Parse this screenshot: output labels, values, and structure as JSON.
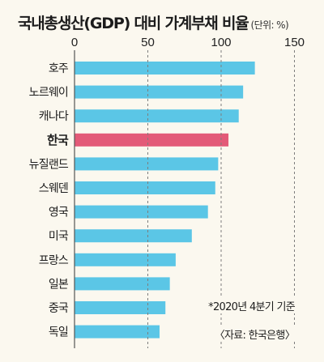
{
  "title": "국내총생산(GDP) 대비 가계부채 비율",
  "unit": "(단위: %)",
  "note": "*2020년 4분기 기준",
  "source": "〈자료: 한국은행〉",
  "colors": {
    "bar": "#5bc6e6",
    "highlight": "#e35a78",
    "grid": "#7d7d7d",
    "background": "#fbf8ef"
  },
  "chart_data": {
    "type": "bar",
    "orientation": "horizontal",
    "categories": [
      "호주",
      "노르웨이",
      "캐나다",
      "한국",
      "뉴질랜드",
      "스웨덴",
      "영국",
      "미국",
      "프랑스",
      "일본",
      "중국",
      "독일"
    ],
    "values": [
      123,
      115,
      112,
      105,
      98,
      96,
      91,
      80,
      69,
      65,
      62,
      58
    ],
    "highlight_category": "한국",
    "ticks": [
      0,
      50,
      100,
      150
    ],
    "xlim": [
      0,
      150
    ],
    "grid": true,
    "grid_style": "dashed-vertical"
  }
}
